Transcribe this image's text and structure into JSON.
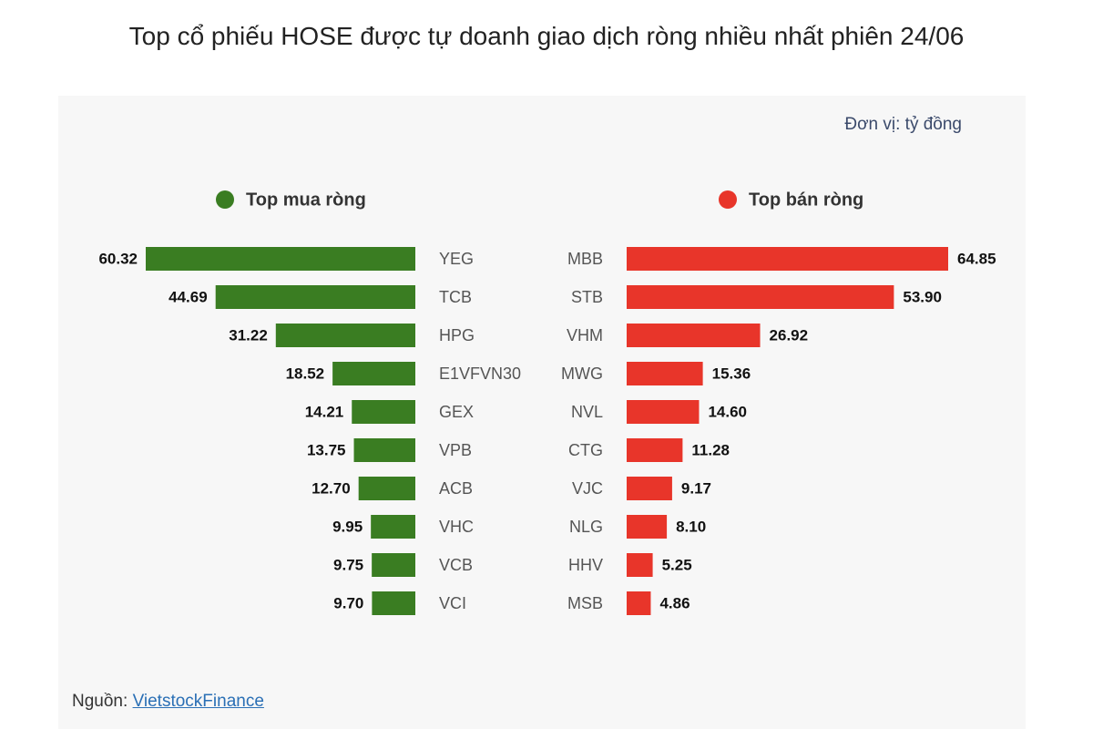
{
  "title": "Top cổ phiếu HOSE được tự doanh giao dịch ròng nhiều nhất phiên 24/06",
  "unit_note": "Đơn vị: tỷ đồng",
  "source": {
    "label": "Nguồn:",
    "link": "VietstockFinance"
  },
  "chart_data": [
    {
      "type": "bar",
      "side": "left",
      "title": "Top mua ròng",
      "color": "#3a7d22",
      "categories": [
        "YEG",
        "TCB",
        "HPG",
        "E1VFVN30",
        "GEX",
        "VPB",
        "ACB",
        "VHC",
        "VCB",
        "VCI"
      ],
      "values": [
        60.32,
        44.69,
        31.22,
        18.52,
        14.21,
        13.75,
        12.7,
        9.95,
        9.75,
        9.7
      ],
      "value_labels": [
        "60.32",
        "44.69",
        "31.22",
        "18.52",
        "14.21",
        "13.75",
        "12.70",
        "9.95",
        "9.75",
        "9.70"
      ]
    },
    {
      "type": "bar",
      "side": "right",
      "title": "Top bán ròng",
      "color": "#e8352a",
      "categories": [
        "MBB",
        "STB",
        "VHM",
        "MWG",
        "NVL",
        "CTG",
        "VJC",
        "NLG",
        "HHV",
        "MSB"
      ],
      "values": [
        64.85,
        53.9,
        26.92,
        15.36,
        14.6,
        11.28,
        9.17,
        8.1,
        5.25,
        4.86
      ],
      "value_labels": [
        "64.85",
        "53.90",
        "26.92",
        "15.36",
        "14.60",
        "11.28",
        "9.17",
        "8.10",
        "5.25",
        "4.86"
      ]
    }
  ]
}
